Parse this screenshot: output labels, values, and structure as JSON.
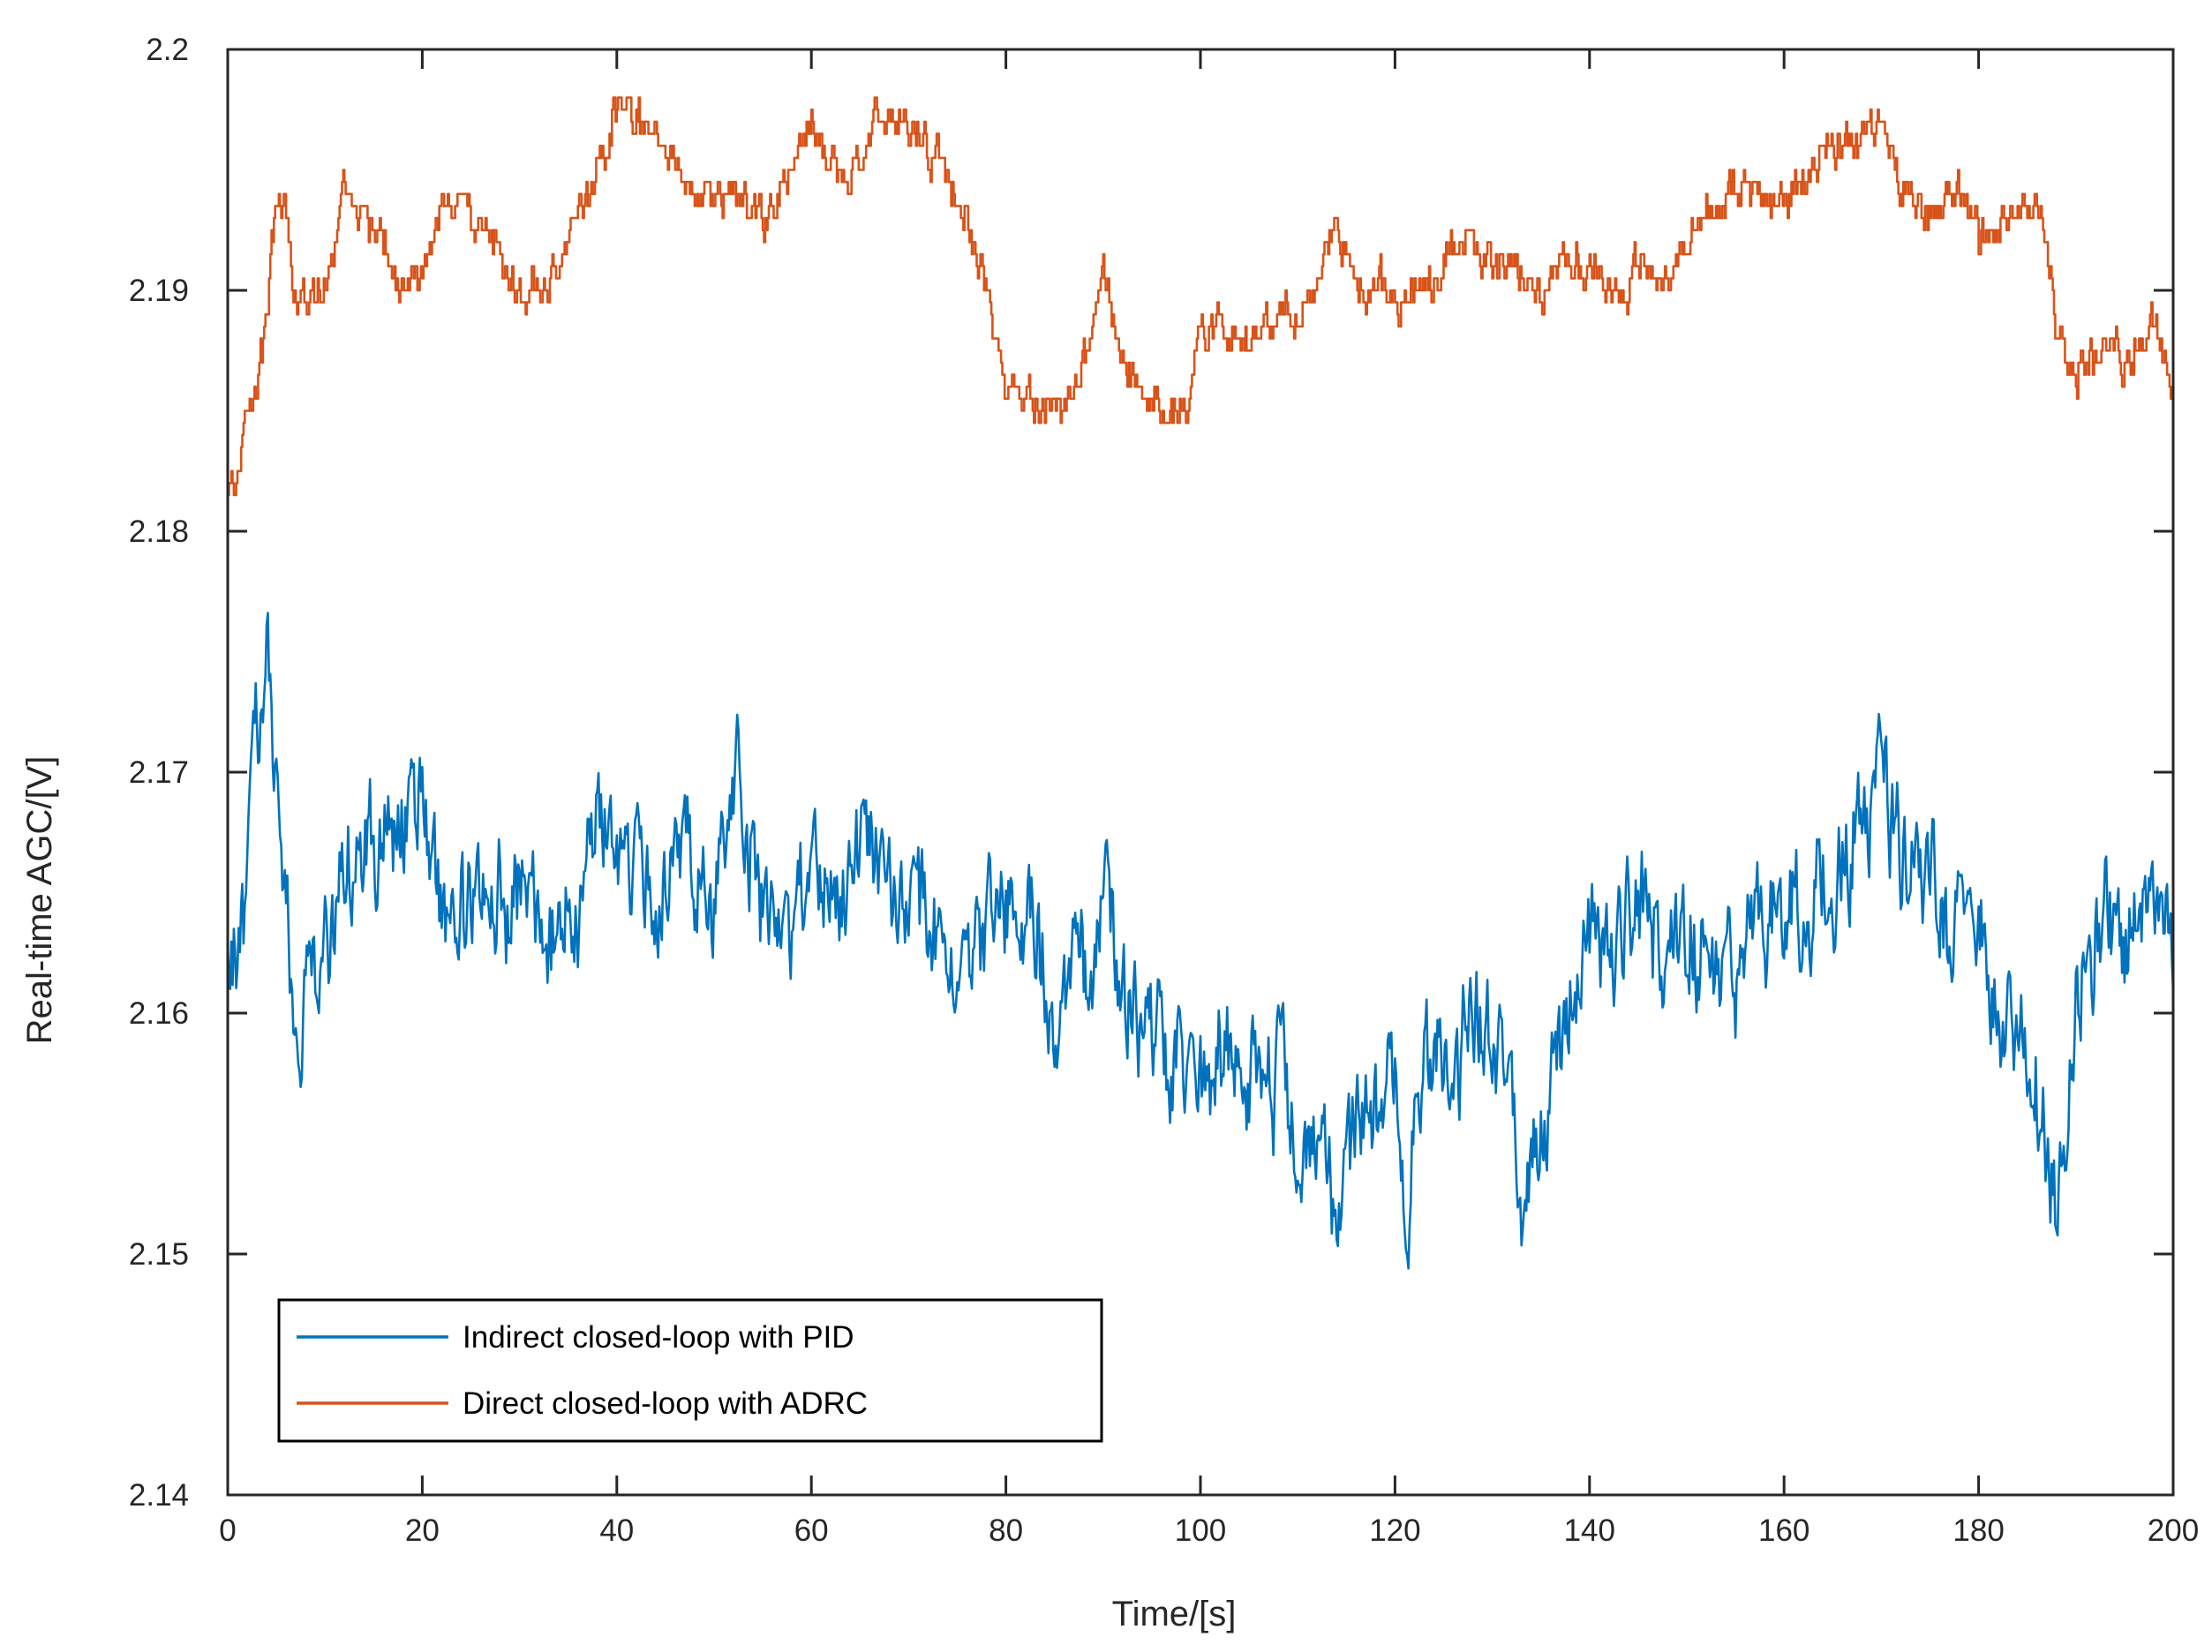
{
  "chart_data": {
    "type": "line",
    "title": "",
    "xlabel": "Time/[s]",
    "ylabel": "Real-time AGC/[V]",
    "xlim": [
      0,
      200
    ],
    "ylim": [
      2.14,
      2.2
    ],
    "xticks": [
      0,
      20,
      40,
      60,
      80,
      100,
      120,
      140,
      160,
      180,
      200
    ],
    "xtick_labels": [
      "0",
      "20",
      "40",
      "60",
      "80",
      "100",
      "120",
      "140",
      "160",
      "180",
      "200"
    ],
    "yticks": [
      2.14,
      2.15,
      2.16,
      2.17,
      2.18,
      2.19,
      2.2
    ],
    "ytick_labels": [
      "2.14",
      "2.15",
      "2.16",
      "2.17",
      "2.18",
      "2.19",
      "2.2"
    ],
    "grid": false,
    "legend_position": "bottom-left",
    "series": [
      {
        "name": "Indirect closed-loop with PID",
        "color": "#0072BD",
        "noise_amplitude": 0.0035,
        "x": [
          0,
          1,
          2,
          3,
          4,
          5,
          6,
          7,
          8,
          10,
          12,
          15,
          18,
          20,
          22,
          25,
          28,
          30,
          33,
          36,
          38,
          40,
          43,
          45,
          48,
          50,
          52,
          54,
          56,
          58,
          60,
          62,
          64,
          66,
          68,
          70,
          72,
          75,
          78,
          80,
          83,
          85,
          87,
          89,
          90,
          92,
          95,
          98,
          100,
          102,
          105,
          108,
          110,
          112,
          114,
          116,
          118,
          120,
          121,
          123,
          126,
          128,
          130,
          132,
          133,
          135,
          138,
          140,
          143,
          145,
          148,
          150,
          152,
          155,
          158,
          160,
          163,
          165,
          168,
          170,
          172,
          175,
          178,
          180,
          183,
          185,
          187,
          188,
          190,
          193,
          195,
          198,
          200
        ],
        "y": [
          2.1635,
          2.162,
          2.165,
          2.172,
          2.174,
          2.169,
          2.165,
          2.16,
          2.161,
          2.163,
          2.166,
          2.167,
          2.168,
          2.168,
          2.164,
          2.163,
          2.165,
          2.165,
          2.163,
          2.164,
          2.167,
          2.167,
          2.165,
          2.166,
          2.166,
          2.164,
          2.171,
          2.166,
          2.164,
          2.164,
          2.165,
          2.166,
          2.167,
          2.167,
          2.165,
          2.165,
          2.163,
          2.163,
          2.163,
          2.164,
          2.163,
          2.158,
          2.162,
          2.163,
          2.164,
          2.161,
          2.159,
          2.157,
          2.156,
          2.159,
          2.158,
          2.157,
          2.156,
          2.157,
          2.153,
          2.155,
          2.157,
          2.157,
          2.153,
          2.158,
          2.158,
          2.16,
          2.158,
          2.156,
          2.152,
          2.155,
          2.16,
          2.162,
          2.163,
          2.164,
          2.162,
          2.162,
          2.163,
          2.162,
          2.164,
          2.164,
          2.165,
          2.165,
          2.167,
          2.169,
          2.167,
          2.166,
          2.164,
          2.163,
          2.16,
          2.158,
          2.155,
          2.151,
          2.16,
          2.163,
          2.162,
          2.165,
          2.162
        ]
      },
      {
        "name": "Direct closed-loop with ADRC",
        "color": "#D95319",
        "noise_amplitude": 0.0012,
        "x": [
          0,
          1,
          2,
          3,
          4,
          5,
          6,
          7,
          8,
          10,
          12,
          15,
          18,
          20,
          22,
          25,
          28,
          30,
          33,
          36,
          38,
          40,
          43,
          45,
          48,
          50,
          52,
          54,
          56,
          58,
          60,
          62,
          64,
          66,
          68,
          70,
          72,
          75,
          78,
          80,
          83,
          85,
          87,
          89,
          90,
          92,
          95,
          98,
          100,
          102,
          105,
          108,
          110,
          112,
          114,
          116,
          118,
          120,
          121,
          123,
          126,
          128,
          130,
          132,
          133,
          135,
          138,
          140,
          143,
          145,
          148,
          150,
          152,
          155,
          158,
          160,
          163,
          165,
          168,
          170,
          172,
          175,
          178,
          180,
          183,
          185,
          187,
          188,
          190,
          193,
          195,
          198,
          200
        ],
        "y": [
          2.181,
          2.183,
          2.185,
          2.186,
          2.189,
          2.194,
          2.193,
          2.19,
          2.19,
          2.19,
          2.194,
          2.193,
          2.19,
          2.19,
          2.194,
          2.193,
          2.191,
          2.19,
          2.19,
          2.193,
          2.195,
          2.197,
          2.197,
          2.196,
          2.194,
          2.194,
          2.194,
          2.193,
          2.193,
          2.195,
          2.197,
          2.195,
          2.195,
          2.197,
          2.197,
          2.197,
          2.196,
          2.194,
          2.19,
          2.186,
          2.186,
          2.185,
          2.186,
          2.188,
          2.191,
          2.187,
          2.186,
          2.185,
          2.188,
          2.189,
          2.188,
          2.189,
          2.189,
          2.19,
          2.193,
          2.19,
          2.19,
          2.19,
          2.19,
          2.19,
          2.191,
          2.192,
          2.191,
          2.191,
          2.191,
          2.19,
          2.191,
          2.191,
          2.19,
          2.191,
          2.191,
          2.192,
          2.193,
          2.194,
          2.194,
          2.194,
          2.195,
          2.196,
          2.196,
          2.197,
          2.194,
          2.193,
          2.194,
          2.192,
          2.193,
          2.194,
          2.192,
          2.188,
          2.187,
          2.188,
          2.187,
          2.189,
          2.186
        ]
      }
    ]
  }
}
